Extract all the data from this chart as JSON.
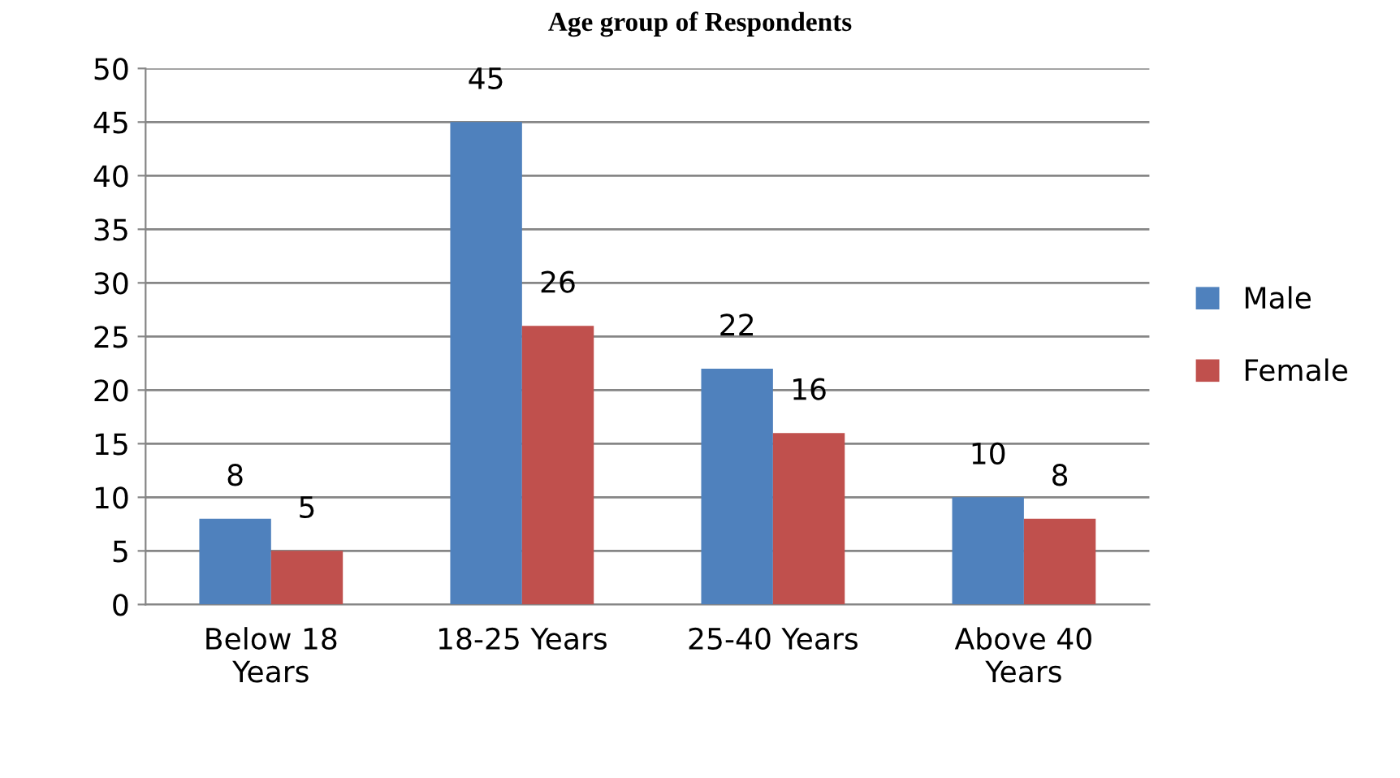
{
  "chart_data": {
    "type": "bar",
    "title": "Age group of Respondents",
    "categories": [
      "Below 18\nYears",
      "18-25 Years",
      "25-40 Years",
      "Above 40\nYears"
    ],
    "series": [
      {
        "name": "Male",
        "color": "#4f81bd",
        "values": [
          8,
          45,
          22,
          10
        ]
      },
      {
        "name": "Female",
        "color": "#c0504d",
        "values": [
          5,
          26,
          16,
          8
        ]
      }
    ],
    "ylim": [
      0,
      50
    ],
    "yticks": [
      0,
      5,
      10,
      15,
      20,
      25,
      30,
      35,
      40,
      45,
      50
    ],
    "grid": "y",
    "legend": "right",
    "data_labels": true
  }
}
